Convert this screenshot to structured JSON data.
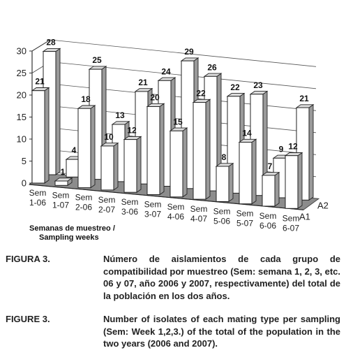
{
  "chart_data": {
    "type": "bar",
    "style": "3d-clustered",
    "categories": [
      "Sem 1-06",
      "Sem 1-07",
      "Sem 2-06",
      "Sem 2-07",
      "Sem 3-06",
      "Sem 3-07",
      "Sem 4-06",
      "Sem 4-07",
      "Sem 5-06",
      "Sem 5-07",
      "Sem 6-06",
      "Sem 6-07"
    ],
    "category_lines": [
      [
        "Sem",
        "1-06"
      ],
      [
        "Sem",
        "1-07"
      ],
      [
        "Sem",
        "2-06"
      ],
      [
        "Sem",
        "2-07"
      ],
      [
        "Sem",
        "3-06"
      ],
      [
        "Sem",
        "3-07"
      ],
      [
        "Sem",
        "4-06"
      ],
      [
        "Sem",
        "4-07"
      ],
      [
        "Sem",
        "5-06"
      ],
      [
        "Sem",
        "5-07"
      ],
      [
        "Sem",
        "6-06"
      ],
      [
        "Sem",
        "6-07"
      ]
    ],
    "series": [
      {
        "name": "A1",
        "values": [
          21,
          1,
          18,
          10,
          12,
          20,
          15,
          22,
          8,
          14,
          7,
          12
        ],
        "color": "#ffffff"
      },
      {
        "name": "A2",
        "values": [
          28,
          4,
          25,
          13,
          21,
          24,
          29,
          26,
          22,
          23,
          9,
          21
        ],
        "color": "#ffffff"
      }
    ],
    "yticks": [
      0,
      5,
      10,
      15,
      20,
      25,
      30
    ],
    "ylim": [
      0,
      30
    ],
    "grid": true,
    "floor_color": "#8c8c8c",
    "xlabel_lines": [
      "Semanas de muestreo /",
      "Sampling weeks"
    ]
  },
  "caption_es": {
    "number": "FIGURA 3.",
    "text": "Número de aislamientos de cada grupo de compatibilidad por muestreo (Sem: semana 1, 2, 3, etc. 06 y 07, año 2006 y 2007, respectivamente) del total de la población en los dos años."
  },
  "caption_en": {
    "number": "FIGURE 3.",
    "text": "Number of isolates of each mating type per sampling (Sem: Week 1,2,3.) of the total of the population in the two years (2006 and 2007)."
  }
}
